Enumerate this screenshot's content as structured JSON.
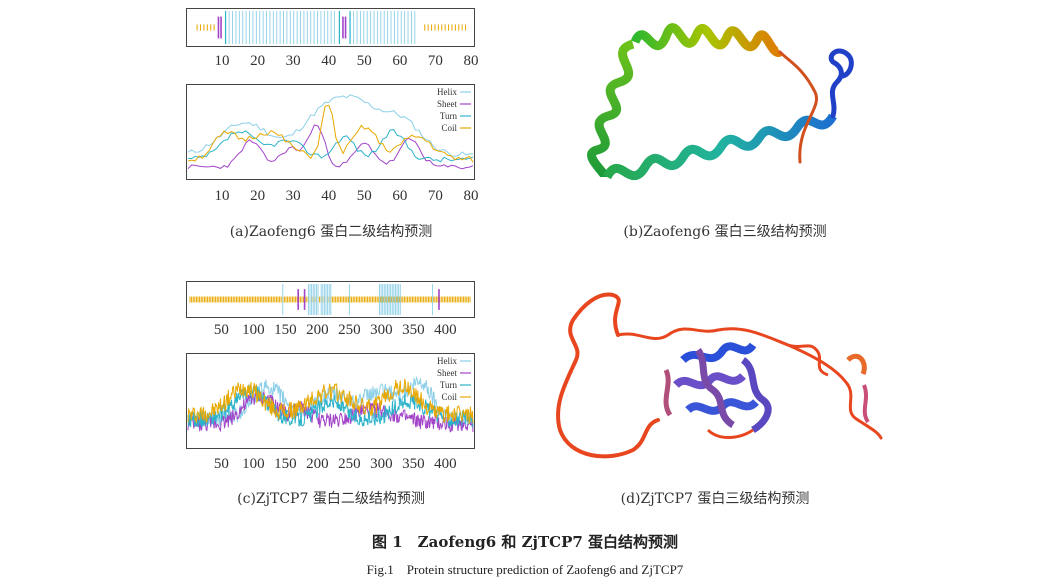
{
  "panels": [
    {
      "id": "a",
      "caption": "(a)Zaofeng6 蛋白二级结构预测",
      "x_ticks": [
        10,
        20,
        30,
        40,
        50,
        60,
        70,
        80
      ],
      "x_range": [
        1,
        80
      ],
      "legend": [
        "Helix",
        "Sheet",
        "Turn",
        "Coil"
      ],
      "track_segments": [
        {
          "type": "coil",
          "from": 3,
          "to": 8
        },
        {
          "type": "sheet",
          "from": 9,
          "to": 10
        },
        {
          "type": "turn",
          "from": 11,
          "to": 11
        },
        {
          "type": "helix",
          "from": 12,
          "to": 42
        },
        {
          "type": "turn",
          "from": 43,
          "to": 43
        },
        {
          "type": "sheet",
          "from": 44,
          "to": 45
        },
        {
          "type": "turn",
          "from": 46,
          "to": 46
        },
        {
          "type": "helix",
          "from": 47,
          "to": 65
        },
        {
          "type": "coil",
          "from": 67,
          "to": 79
        }
      ]
    },
    {
      "id": "b",
      "caption": "(b)Zaofeng6 蛋白三级结构预测"
    },
    {
      "id": "c",
      "caption": "(c)ZjTCP7 蛋白二级结构预测",
      "x_ticks": [
        50,
        100,
        150,
        200,
        250,
        300,
        350,
        400
      ],
      "x_range": [
        1,
        440
      ],
      "legend": [
        "Helix",
        "Sheet",
        "Turn",
        "Coil"
      ],
      "track_segments": [
        {
          "type": "coil",
          "from": 1,
          "to": 440
        },
        {
          "type": "helix",
          "from": 146,
          "to": 148
        },
        {
          "type": "sheet",
          "from": 170,
          "to": 172
        },
        {
          "type": "sheet",
          "from": 180,
          "to": 181
        },
        {
          "type": "helix",
          "from": 186,
          "to": 202
        },
        {
          "type": "helix",
          "from": 206,
          "to": 222
        },
        {
          "type": "helix",
          "from": 250,
          "to": 251
        },
        {
          "type": "helix",
          "from": 297,
          "to": 330
        },
        {
          "type": "helix",
          "from": 380,
          "to": 382
        },
        {
          "type": "sheet",
          "from": 390,
          "to": 392
        }
      ]
    },
    {
      "id": "d",
      "caption": "(d)ZjTCP7 蛋白三级结构预测"
    }
  ],
  "figure": {
    "title_cn": "图 1　Zaofeng6 和 ZjTCP7 蛋白结构预测",
    "title_en": "Fig.1　Protein structure prediction of Zaofeng6 and ZjTCP7"
  },
  "colors": {
    "helix": "#8ccfe8",
    "sheet": "#a244c8",
    "turn": "#2cb3c9",
    "coil": "#e8a800",
    "frame": "#444444"
  }
}
